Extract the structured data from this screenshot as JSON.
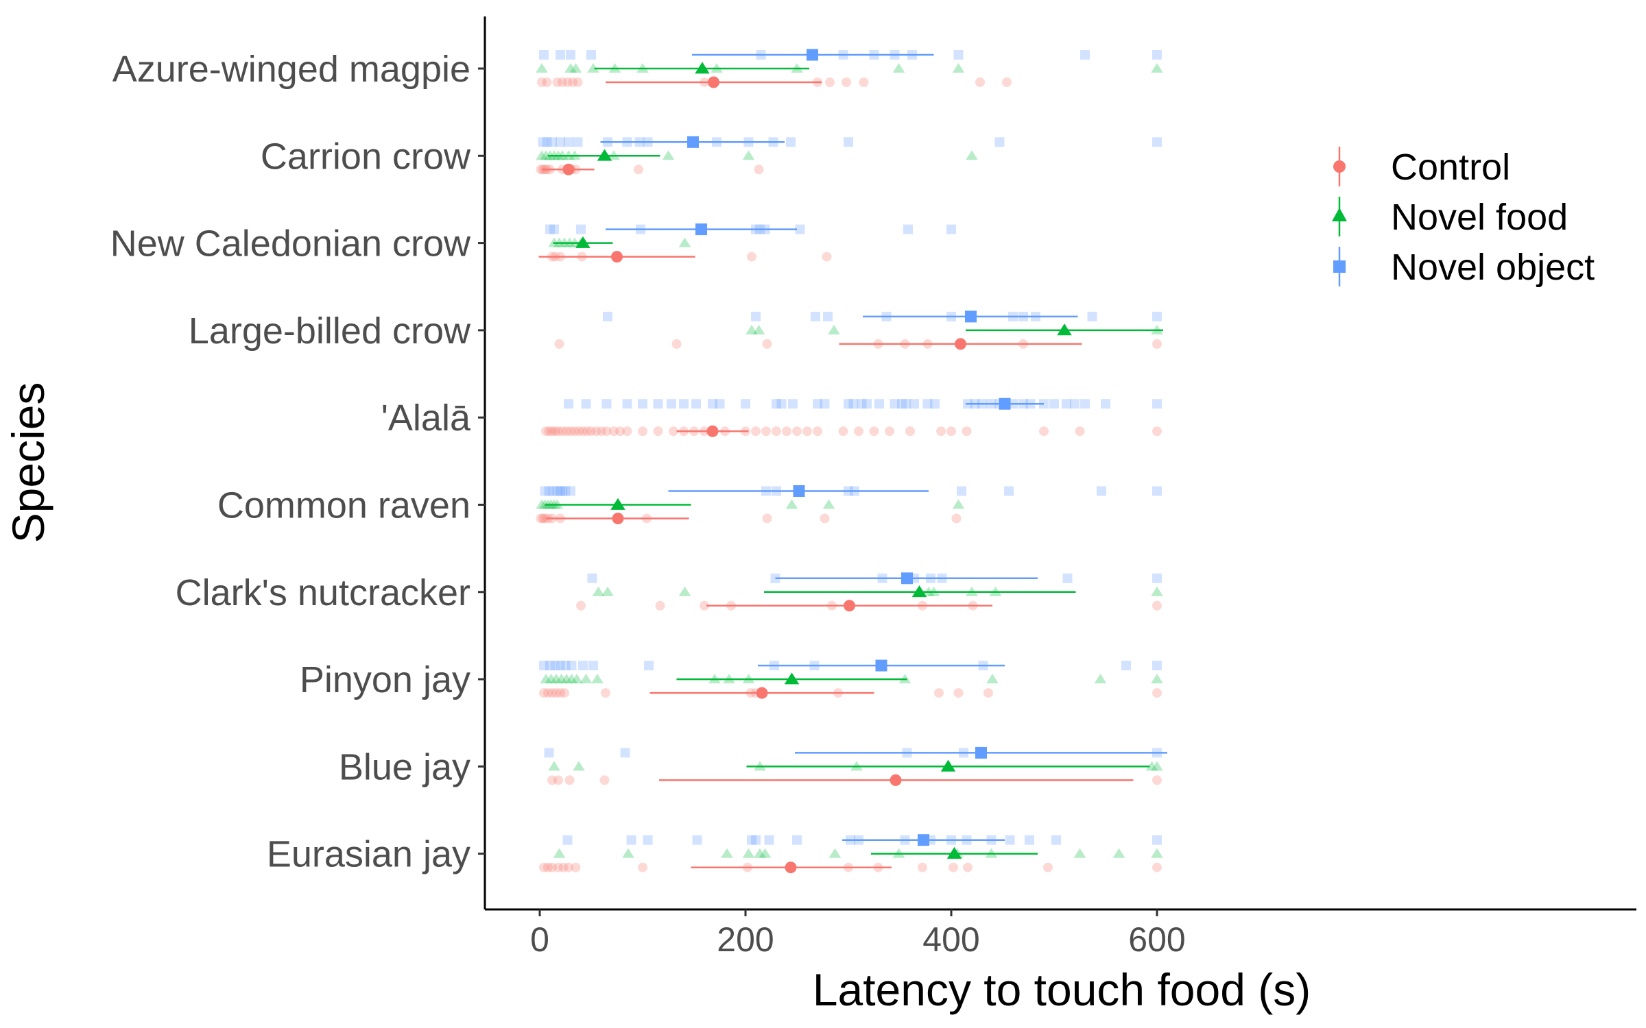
{
  "chart_data": {
    "type": "scatter",
    "xlabel": "Latency to touch food (s)",
    "ylabel": "Species",
    "xlim": [
      -35,
      640
    ],
    "xticks": [
      "0",
      "200",
      "400",
      "600"
    ],
    "grid": false,
    "legend_position": "right",
    "categories": [
      "Azure-winged magpie",
      "Carrion crow",
      "New Caledonian crow",
      "Large-billed crow",
      "'Alalā",
      "Common raven",
      "Clark's nutcracker",
      "Pinyon jay",
      "Blue jay",
      "Eurasian jay"
    ],
    "series": [
      {
        "name": "Control",
        "color": "#F8766D",
        "shape": "circle",
        "summary": [
          {
            "species": "Azure-winged magpie",
            "mean": 169,
            "low": 64,
            "high": 274
          },
          {
            "species": "Carrion crow",
            "mean": 28,
            "low": 2,
            "high": 53
          },
          {
            "species": "New Caledonian crow",
            "mean": 75,
            "low": -1,
            "high": 151
          },
          {
            "species": "Large-billed crow",
            "mean": 409,
            "low": 291,
            "high": 527
          },
          {
            "species": "'Alalā",
            "mean": 168,
            "low": 133,
            "high": 203
          },
          {
            "species": "Common raven",
            "mean": 76,
            "low": 6,
            "high": 145
          },
          {
            "species": "Clark's nutcracker",
            "mean": 301,
            "low": 162,
            "high": 440
          },
          {
            "species": "Pinyon jay",
            "mean": 216,
            "low": 107,
            "high": 325
          },
          {
            "species": "Blue jay",
            "mean": 346,
            "low": 116,
            "high": 577
          },
          {
            "species": "Eurasian jay",
            "mean": 244,
            "low": 147,
            "high": 342
          }
        ],
        "raw": [
          {
            "species": "Azure-winged magpie",
            "values": [
              2,
              7,
              17,
              22,
              27,
              32,
              37,
              160,
              270,
              282,
              298,
              315,
              428,
              454
            ]
          },
          {
            "species": "Carrion crow",
            "values": [
              1,
              3,
              5,
              7,
              10,
              22,
              27,
              31,
              35,
              96,
              213
            ]
          },
          {
            "species": "New Caledonian crow",
            "values": [
              12,
              15,
              20,
              41,
              206,
              279
            ]
          },
          {
            "species": "Large-billed crow",
            "values": [
              19,
              133,
              221,
              329,
              355,
              377,
              470,
              600
            ]
          },
          {
            "species": "'Alalā",
            "values": [
              6,
              9,
              12,
              15,
              18,
              22,
              26,
              30,
              34,
              38,
              42,
              46,
              50,
              55,
              60,
              65,
              72,
              78,
              85,
              100,
              115,
              130,
              140,
              150,
              160,
              180,
              200,
              210,
              220,
              230,
              240,
              250,
              260,
              270,
              295,
              310,
              325,
              340,
              360,
              390,
              400,
              415,
              490,
              525,
              600
            ]
          },
          {
            "species": "Common raven",
            "values": [
              1,
              3,
              5,
              8,
              12,
              20,
              104,
              221,
              277,
              405
            ]
          },
          {
            "species": "Clark's nutcracker",
            "values": [
              40,
              117,
              160,
              186,
              284,
              372,
              421,
              600
            ]
          },
          {
            "species": "Pinyon jay",
            "values": [
              4,
              8,
              12,
              16,
              20,
              24,
              64,
              205,
              210,
              290,
              388,
              407,
              436,
              600
            ]
          },
          {
            "species": "Blue jay",
            "values": [
              12,
              18,
              29,
              63,
              600
            ]
          },
          {
            "species": "Eurasian jay",
            "values": [
              4,
              8,
              12,
              18,
              23,
              28,
              35,
              100,
              202,
              300,
              329,
              372,
              402,
              416,
              494,
              600
            ]
          }
        ]
      },
      {
        "name": "Novel food",
        "color": "#00BA38",
        "shape": "triangle",
        "summary": [
          {
            "species": "Azure-winged magpie",
            "mean": 158,
            "low": 53,
            "high": 262
          },
          {
            "species": "Carrion crow",
            "mean": 63,
            "low": 8,
            "high": 117
          },
          {
            "species": "New Caledonian crow",
            "mean": 42,
            "low": 13,
            "high": 71
          },
          {
            "species": "Large-billed crow",
            "mean": 510,
            "low": 414,
            "high": 606
          },
          {
            "species": "Common raven",
            "mean": 76,
            "low": 5,
            "high": 147
          },
          {
            "species": "Clark's nutcracker",
            "mean": 369,
            "low": 218,
            "high": 521
          },
          {
            "species": "Pinyon jay",
            "mean": 245,
            "low": 133,
            "high": 357
          },
          {
            "species": "Blue jay",
            "mean": 397,
            "low": 201,
            "high": 593
          },
          {
            "species": "Eurasian jay",
            "mean": 403,
            "low": 322,
            "high": 484
          }
        ],
        "raw": [
          {
            "species": "Azure-winged magpie",
            "values": [
              2,
              30,
              35,
              52,
              73,
              100,
              172,
              250,
              349,
              407,
              600
            ]
          },
          {
            "species": "Carrion crow",
            "values": [
              2,
              6,
              10,
              14,
              18,
              22,
              28,
              34,
              72,
              125,
              203,
              420
            ]
          },
          {
            "species": "New Caledonian crow",
            "values": [
              14,
              19,
              24,
              29,
              34,
              40,
              141
            ]
          },
          {
            "species": "Large-billed crow",
            "values": [
              206,
              213,
              286,
              600
            ]
          },
          {
            "species": "Common raven",
            "values": [
              2,
              5,
              8,
              11,
              14,
              17,
              245,
              281,
              407
            ]
          },
          {
            "species": "Clark's nutcracker",
            "values": [
              57,
              66,
              141,
              378,
              383,
              420,
              443,
              600
            ]
          },
          {
            "species": "Pinyon jay",
            "values": [
              6,
              11,
              16,
              21,
              26,
              31,
              36,
              45,
              56,
              170,
              184,
              203,
              355,
              440,
              545,
              600
            ]
          },
          {
            "species": "Blue jay",
            "values": [
              14,
              38,
              214,
              308,
              595,
              600
            ]
          },
          {
            "species": "Eurasian jay",
            "values": [
              19,
              86,
              182,
              203,
              214,
              219,
              287,
              349,
              406,
              439,
              525,
              563,
              600
            ]
          }
        ]
      },
      {
        "name": "Novel object",
        "color": "#619CFF",
        "shape": "square",
        "summary": [
          {
            "species": "Azure-winged magpie",
            "mean": 265,
            "low": 148,
            "high": 383
          },
          {
            "species": "Carrion crow",
            "mean": 149,
            "low": 59,
            "high": 238
          },
          {
            "species": "New Caledonian crow",
            "mean": 157,
            "low": 64,
            "high": 250
          },
          {
            "species": "Large-billed crow",
            "mean": 419,
            "low": 314,
            "high": 523
          },
          {
            "species": "'Alalā",
            "mean": 452,
            "low": 414,
            "high": 490
          },
          {
            "species": "Common raven",
            "mean": 252,
            "low": 125,
            "high": 378
          },
          {
            "species": "Clark's nutcracker",
            "mean": 357,
            "low": 229,
            "high": 484
          },
          {
            "species": "Pinyon jay",
            "mean": 332,
            "low": 212,
            "high": 452
          },
          {
            "species": "Blue jay",
            "mean": 429,
            "low": 248,
            "high": 610
          },
          {
            "species": "Eurasian jay",
            "mean": 373,
            "low": 294,
            "high": 452
          }
        ],
        "raw": [
          {
            "species": "Azure-winged magpie",
            "values": [
              4,
              20,
              30,
              50,
              215,
              295,
              325,
              345,
              362,
              407,
              530,
              600
            ]
          },
          {
            "species": "Carrion crow",
            "values": [
              3,
              7,
              12,
              20,
              28,
              37,
              66,
              85,
              97,
              105,
              172,
              203,
              227,
              244,
              300,
              447,
              600
            ]
          },
          {
            "species": "New Caledonian crow",
            "values": [
              10,
              14,
              40,
              98,
              210,
              214,
              219,
              253,
              358,
              400
            ]
          },
          {
            "species": "Large-billed crow",
            "values": [
              66,
              210,
              268,
              280,
              337,
              400,
              460,
              470,
              482,
              537,
              600
            ]
          },
          {
            "species": "'Alalā",
            "values": [
              28,
              45,
              65,
              85,
              100,
              115,
              128,
              140,
              152,
              168,
              175,
              200,
              230,
              235,
              246,
              270,
              277,
              300,
              305,
              313,
              318,
              330,
              345,
              352,
              356,
              364,
              377,
              384,
              416,
              423,
              430,
              439,
              447,
              460,
              470,
              477,
              490,
              500,
              512,
              520,
              530,
              550,
              600
            ]
          },
          {
            "species": "Common raven",
            "values": [
              5,
              9,
              13,
              17,
              20,
              22,
              25,
              30,
              220,
              230,
              300,
              306,
              410,
              456,
              546,
              600
            ]
          },
          {
            "species": "Clark's nutcracker",
            "values": [
              51,
              229,
              333,
              364,
              380,
              391,
              513,
              600
            ]
          },
          {
            "species": "Pinyon jay",
            "values": [
              4,
              10,
              15,
              20,
              25,
              31,
              42,
              52,
              106,
              228,
              267,
              431,
              570,
              600
            ]
          },
          {
            "species": "Blue jay",
            "values": [
              9,
              83,
              357,
              412,
              600
            ]
          },
          {
            "species": "Eurasian jay",
            "values": [
              27,
              89,
              105,
              153,
              206,
              210,
              223,
              250,
              302,
              310,
              355,
              380,
              400,
              415,
              439,
              457,
              476,
              502,
              600
            ]
          }
        ]
      }
    ]
  }
}
